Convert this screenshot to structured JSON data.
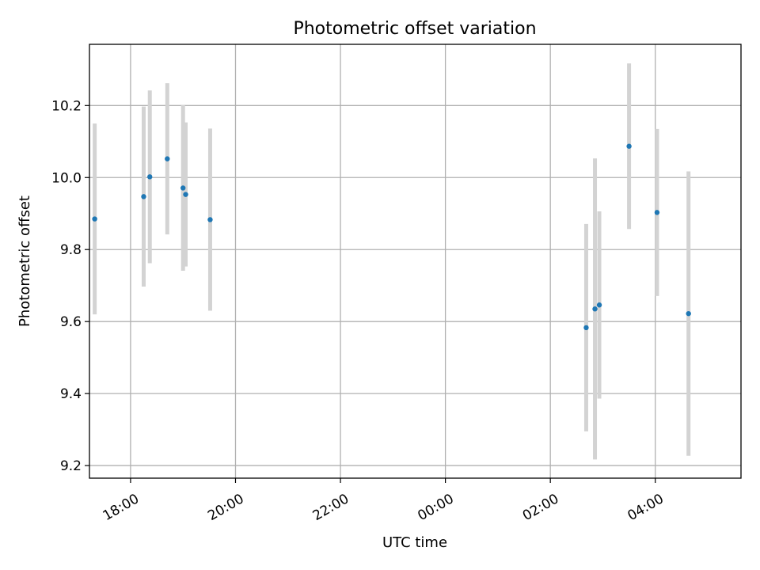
{
  "chart_data": {
    "type": "scatter",
    "title": "Photometric offset variation",
    "xlabel": "UTC time",
    "ylabel": "Photometric offset",
    "x_ticks": [
      "18:00",
      "20:00",
      "22:00",
      "00:00",
      "02:00",
      "04:00"
    ],
    "y_ticks": [
      "9.2",
      "9.4",
      "9.6",
      "9.8",
      "10.0",
      "10.2"
    ],
    "xlim": [
      "17:13",
      "05:38"
    ],
    "ylim": [
      9.165,
      10.37
    ],
    "grid": true,
    "colors": {
      "point": "#1f77b4",
      "errorbar": "#d3d3d3",
      "grid": "#b0b0b0"
    },
    "points": [
      {
        "time": "17:19",
        "y": 9.885,
        "err": 0.265
      },
      {
        "time": "18:15",
        "y": 9.947,
        "err": 0.25
      },
      {
        "time": "18:22",
        "y": 10.002,
        "err": 0.24
      },
      {
        "time": "18:42",
        "y": 10.052,
        "err": 0.21
      },
      {
        "time": "19:00",
        "y": 9.971,
        "err": 0.23
      },
      {
        "time": "19:03",
        "y": 9.953,
        "err": 0.2
      },
      {
        "time": "19:31",
        "y": 9.883,
        "err": 0.253
      },
      {
        "time": "02:41",
        "y": 9.583,
        "err": 0.288
      },
      {
        "time": "02:51",
        "y": 9.635,
        "err": 0.418
      },
      {
        "time": "02:56",
        "y": 9.646,
        "err": 0.26
      },
      {
        "time": "03:30",
        "y": 10.087,
        "err": 0.23
      },
      {
        "time": "04:02",
        "y": 9.903,
        "err": 0.232
      },
      {
        "time": "04:38",
        "y": 9.622,
        "err": 0.395
      }
    ]
  }
}
